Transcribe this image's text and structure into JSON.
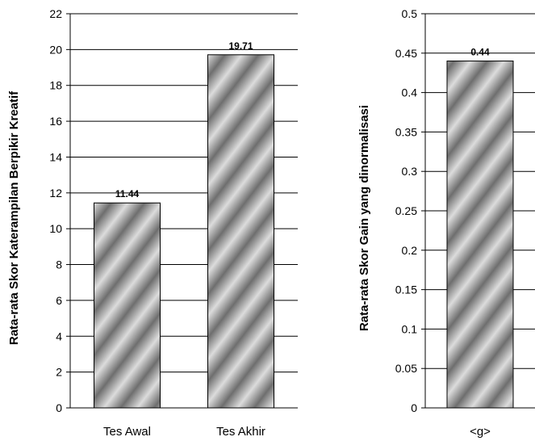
{
  "chart_data": [
    {
      "type": "bar",
      "categories": [
        "Tes Awal",
        "Tes Akhir"
      ],
      "values": [
        11.44,
        19.71
      ],
      "data_labels": [
        "11.44",
        "19.71"
      ],
      "ylabel": "Rata-rata Skor Katerampilan Berpikir Kreatif",
      "xlabel": "",
      "ylim": [
        0,
        22
      ],
      "yticks": [
        "0",
        "2",
        "4",
        "6",
        "8",
        "10",
        "12",
        "14",
        "16",
        "18",
        "20",
        "22"
      ],
      "grid": true,
      "legend": "none"
    },
    {
      "type": "bar",
      "categories": [
        "<g>"
      ],
      "values": [
        0.44
      ],
      "data_labels": [
        "0.44"
      ],
      "ylabel": "Rata-rata Skor Gain yang dinormalisasi",
      "xlabel": "",
      "ylim": [
        0,
        0.5
      ],
      "yticks": [
        "0",
        "0.05",
        "0.1",
        "0.15",
        "0.2",
        "0.25",
        "0.3",
        "0.35",
        "0.4",
        "0.45",
        "0.5"
      ],
      "grid": true,
      "legend": "none"
    }
  ],
  "colors": {
    "bar_light": "#dcdcdc",
    "bar_dark": "#6e6e6e",
    "grid": "#000000"
  }
}
